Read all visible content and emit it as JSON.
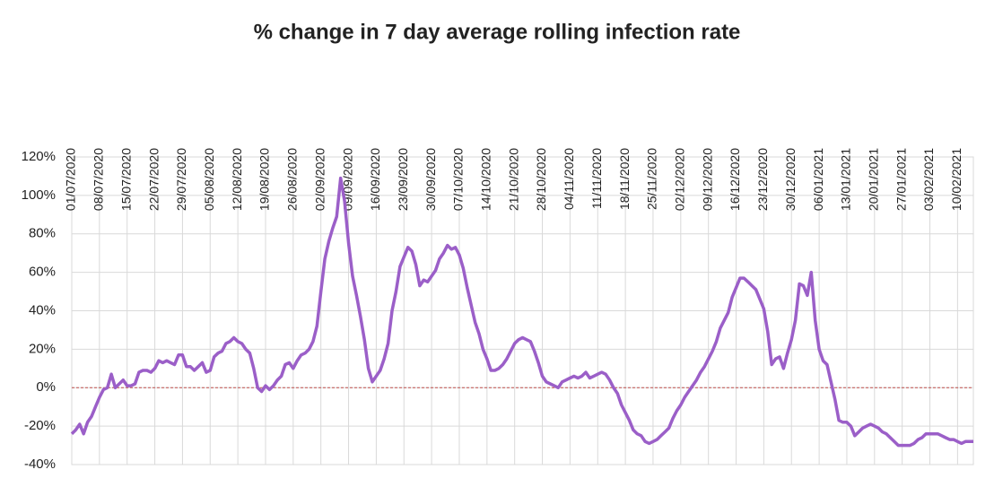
{
  "chart_data": {
    "type": "line",
    "title": "% change in 7 day average rolling infection rate",
    "categories": [
      "01/07/2020",
      null,
      null,
      null,
      null,
      null,
      null,
      "08/07/2020",
      null,
      null,
      null,
      null,
      null,
      null,
      "15/07/2020",
      null,
      null,
      null,
      null,
      null,
      null,
      "22/07/2020",
      null,
      null,
      null,
      null,
      null,
      null,
      "29/07/2020",
      null,
      null,
      null,
      null,
      null,
      null,
      "05/08/2020",
      null,
      null,
      null,
      null,
      null,
      null,
      "12/08/2020",
      null,
      null,
      null,
      null,
      null,
      null,
      "19/08/2020",
      null,
      null,
      null,
      null,
      null,
      null,
      "26/08/2020",
      null,
      null,
      null,
      null,
      null,
      null,
      "02/09/2020",
      null,
      null,
      null,
      null,
      null,
      null,
      "09/09/2020",
      null,
      null,
      null,
      null,
      null,
      null,
      "16/09/2020",
      null,
      null,
      null,
      null,
      null,
      null,
      "23/09/2020",
      null,
      null,
      null,
      null,
      null,
      null,
      "30/09/2020",
      null,
      null,
      null,
      null,
      null,
      null,
      "07/10/2020",
      null,
      null,
      null,
      null,
      null,
      null,
      "14/10/2020",
      null,
      null,
      null,
      null,
      null,
      null,
      "21/10/2020",
      null,
      null,
      null,
      null,
      null,
      null,
      "28/10/2020",
      null,
      null,
      null,
      null,
      null,
      null,
      "04/11/2020",
      null,
      null,
      null,
      null,
      null,
      null,
      "11/11/2020",
      null,
      null,
      null,
      null,
      null,
      null,
      "18/11/2020",
      null,
      null,
      null,
      null,
      null,
      null,
      "25/11/2020",
      null,
      null,
      null,
      null,
      null,
      null,
      "02/12/2020",
      null,
      null,
      null,
      null,
      null,
      null,
      "09/12/2020",
      null,
      null,
      null,
      null,
      null,
      null,
      "16/12/2020",
      null,
      null,
      null,
      null,
      null,
      null,
      "23/12/2020",
      null,
      null,
      null,
      null,
      null,
      null,
      "30/12/2020",
      null,
      null,
      null,
      null,
      null,
      null,
      "06/01/2021",
      null,
      null,
      null,
      null,
      null,
      null,
      "13/01/2021",
      null,
      null,
      null,
      null,
      null,
      null,
      "20/01/2021",
      null,
      null,
      null,
      null,
      null,
      null,
      "27/01/2021",
      null,
      null,
      null,
      null,
      null,
      null,
      "03/02/2021",
      null,
      null,
      null,
      null,
      null,
      null,
      "10/02/2021",
      null,
      null,
      null,
      null
    ],
    "series": [
      {
        "color": "#9b5fc8",
        "values": [
          -24,
          -22,
          -19,
          -24,
          -18,
          -15,
          -10,
          -5,
          -1,
          0,
          7,
          0,
          2,
          4,
          1,
          1,
          2,
          8,
          9,
          9,
          8,
          10,
          14,
          13,
          14,
          13,
          12,
          17,
          17,
          11,
          11,
          9,
          11,
          13,
          8,
          9,
          16,
          18,
          19,
          23,
          24,
          26,
          24,
          23,
          20,
          18,
          10,
          0,
          -2,
          1,
          -1,
          1,
          4,
          6,
          12,
          13,
          10,
          14,
          17,
          18,
          20,
          24,
          32,
          50,
          67,
          76,
          83,
          89,
          109,
          97,
          75,
          58,
          48,
          37,
          25,
          10,
          3,
          6,
          9,
          15,
          23,
          40,
          50,
          63,
          68,
          73,
          71,
          64,
          53,
          56,
          55,
          58,
          61,
          67,
          70,
          74,
          72,
          73,
          69,
          62,
          52,
          43,
          34,
          28,
          20,
          15,
          9,
          9,
          10,
          12,
          15,
          19,
          23,
          25,
          26,
          25,
          24,
          19,
          13,
          6,
          3,
          2,
          1,
          0,
          3,
          4,
          5,
          6,
          5,
          6,
          8,
          5,
          6,
          7,
          8,
          7,
          4,
          0,
          -3,
          -9,
          -13,
          -17,
          -22,
          -24,
          -25,
          -28,
          -29,
          -28,
          -27,
          -25,
          -23,
          -21,
          -16,
          -12,
          -9,
          -5,
          -2,
          1,
          4,
          8,
          11,
          15,
          19,
          24,
          31,
          35,
          39,
          47,
          52,
          57,
          57,
          55,
          53,
          51,
          46,
          41,
          29,
          12,
          15,
          16,
          10,
          18,
          25,
          35,
          54,
          53,
          48,
          60,
          35,
          20,
          14,
          12,
          3,
          -6,
          -17,
          -18,
          -18,
          -20,
          -25,
          -23,
          -21,
          -20,
          -19,
          -20,
          -21,
          -23,
          -24,
          -26,
          -28,
          -30,
          -30,
          -30,
          -30,
          -29,
          -27,
          -26,
          -24,
          -24,
          -24,
          -24,
          -25,
          -26,
          -27,
          -27,
          -28,
          -29,
          -28,
          -28,
          -28
        ]
      }
    ],
    "ylim": [
      -40,
      120
    ],
    "yticks": [
      {
        "value": -40,
        "label": "-40%"
      },
      {
        "value": -20,
        "label": "-20%"
      },
      {
        "value": 0,
        "label": "0%"
      },
      {
        "value": 20,
        "label": "20%"
      },
      {
        "value": 40,
        "label": "40%"
      },
      {
        "value": 60,
        "label": "60%"
      },
      {
        "value": 80,
        "label": "80%"
      },
      {
        "value": 100,
        "label": "100%"
      },
      {
        "value": 120,
        "label": "120%"
      }
    ],
    "grid": true,
    "zero_line_color": "#c0504d"
  }
}
